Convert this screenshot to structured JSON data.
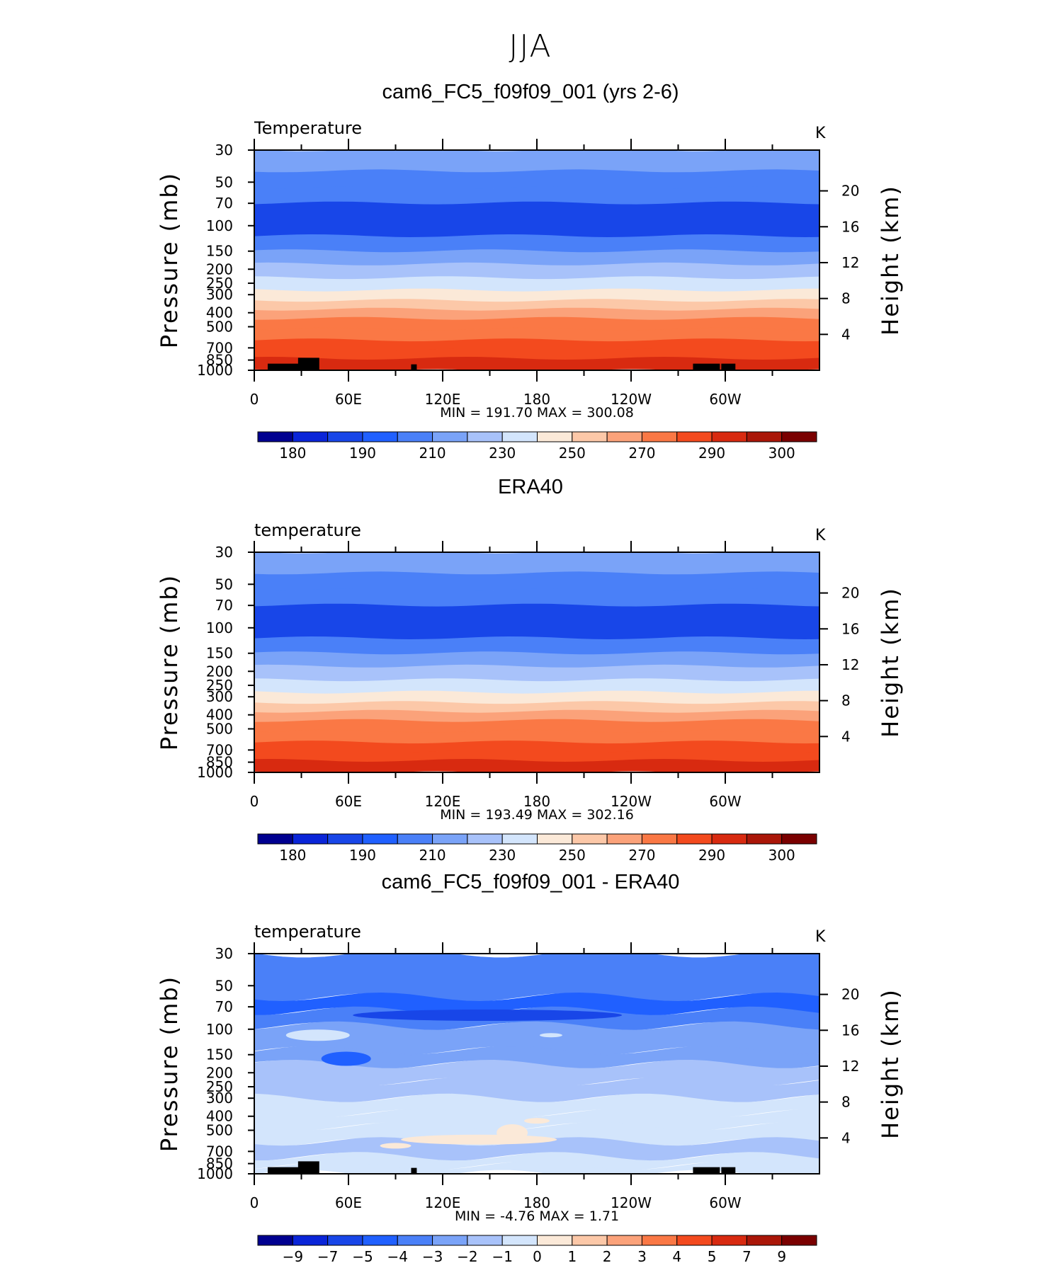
{
  "figure": {
    "title": "JJA"
  },
  "chart_data": [
    {
      "type": "heatmap",
      "title": "cam6_FC5_f09f09_001 (yrs 2-6)",
      "left_label": "Temperature",
      "units": "K",
      "ylabel": "Pressure (mb)",
      "ylabel_right": "Height (km)",
      "x_ticks": [
        "0",
        "60E",
        "120E",
        "180",
        "120W",
        "60W"
      ],
      "y_ticks": [
        "30",
        "50",
        "70",
        "100",
        "150",
        "200",
        "250",
        "300",
        "400",
        "500",
        "700",
        "850",
        "1000"
      ],
      "y_right_ticks": [
        "4",
        "8",
        "12",
        "16",
        "20"
      ],
      "ylim": [
        1000,
        30
      ],
      "y_scale": "log",
      "stats": "MIN = 191.70   MAX = 300.08",
      "min": 191.7,
      "max": 300.08,
      "colorbar_labels": [
        "180",
        "190",
        "210",
        "230",
        "250",
        "270",
        "290",
        "300"
      ],
      "colorbar_colors": [
        "#000090",
        "#0a25d8",
        "#1846e8",
        "#2060ff",
        "#4a80f8",
        "#7aa3f8",
        "#a8c2fa",
        "#d3e5fc",
        "#fbe9d8",
        "#fcc8a8",
        "#fba27a",
        "#fa7845",
        "#f34a1e",
        "#d82a10",
        "#aa1608",
        "#7a0000"
      ],
      "profile": {
        "levels": [
          30,
          50,
          70,
          100,
          150,
          200,
          250,
          300,
          400,
          500,
          700,
          850,
          1000
        ],
        "temperature": [
          216,
          210,
          206,
          200,
          208,
          216,
          222,
          232,
          248,
          262,
          280,
          290,
          296
        ]
      }
    },
    {
      "type": "heatmap",
      "title": "ERA40",
      "left_label": "temperature",
      "units": "K",
      "ylabel": "Pressure (mb)",
      "ylabel_right": "Height (km)",
      "x_ticks": [
        "0",
        "60E",
        "120E",
        "180",
        "120W",
        "60W"
      ],
      "y_ticks": [
        "30",
        "50",
        "70",
        "100",
        "150",
        "200",
        "250",
        "300",
        "400",
        "500",
        "700",
        "850",
        "1000"
      ],
      "y_right_ticks": [
        "4",
        "8",
        "12",
        "16",
        "20"
      ],
      "ylim": [
        1000,
        30
      ],
      "y_scale": "log",
      "stats": "MIN = 193.49   MAX = 302.16",
      "min": 193.49,
      "max": 302.16,
      "colorbar_labels": [
        "180",
        "190",
        "210",
        "230",
        "250",
        "270",
        "290",
        "300"
      ],
      "colorbar_colors": [
        "#000090",
        "#0a25d8",
        "#1846e8",
        "#2060ff",
        "#4a80f8",
        "#7aa3f8",
        "#a8c2fa",
        "#d3e5fc",
        "#fbe9d8",
        "#fcc8a8",
        "#fba27a",
        "#fa7845",
        "#f34a1e",
        "#d82a10",
        "#aa1608",
        "#7a0000"
      ],
      "profile": {
        "levels": [
          30,
          50,
          70,
          100,
          150,
          200,
          250,
          300,
          400,
          500,
          700,
          850,
          1000
        ],
        "temperature": [
          218,
          212,
          208,
          202,
          210,
          217,
          224,
          234,
          250,
          264,
          281,
          292,
          298
        ]
      }
    },
    {
      "type": "heatmap",
      "title": "cam6_FC5_f09f09_001 - ERA40",
      "left_label": "temperature",
      "units": "K",
      "ylabel": "Pressure (mb)",
      "ylabel_right": "Height (km)",
      "x_ticks": [
        "0",
        "60E",
        "120E",
        "180",
        "120W",
        "60W"
      ],
      "y_ticks": [
        "30",
        "50",
        "70",
        "100",
        "150",
        "200",
        "250",
        "300",
        "400",
        "500",
        "700",
        "850",
        "1000"
      ],
      "y_right_ticks": [
        "4",
        "8",
        "12",
        "16",
        "20"
      ],
      "ylim": [
        1000,
        30
      ],
      "y_scale": "log",
      "stats": "MIN =   -4.76   MAX =     1.71",
      "min": -4.76,
      "max": 1.71,
      "colorbar_labels": [
        "−9",
        "−7",
        "−5",
        "−4",
        "−3",
        "−2",
        "−1",
        "0",
        "1",
        "2",
        "3",
        "4",
        "5",
        "7",
        "9"
      ],
      "colorbar_colors": [
        "#000090",
        "#0a25d8",
        "#1846e8",
        "#2060ff",
        "#4a80f8",
        "#7aa3f8",
        "#a8c2fa",
        "#d3e5fc",
        "#fbe9d8",
        "#fcc8a8",
        "#fba27a",
        "#fa7845",
        "#f34a1e",
        "#d82a10",
        "#aa1608",
        "#7a0000"
      ],
      "profile": {
        "levels": [
          30,
          50,
          70,
          100,
          150,
          200,
          250,
          300,
          400,
          500,
          700,
          850,
          1000
        ],
        "difference": [
          -3.5,
          -3.2,
          -3.6,
          -2.6,
          -2.4,
          -2.0,
          -1.8,
          -1.2,
          -0.8,
          -0.4,
          -0.8,
          -1.2,
          -1.3
        ]
      }
    }
  ]
}
